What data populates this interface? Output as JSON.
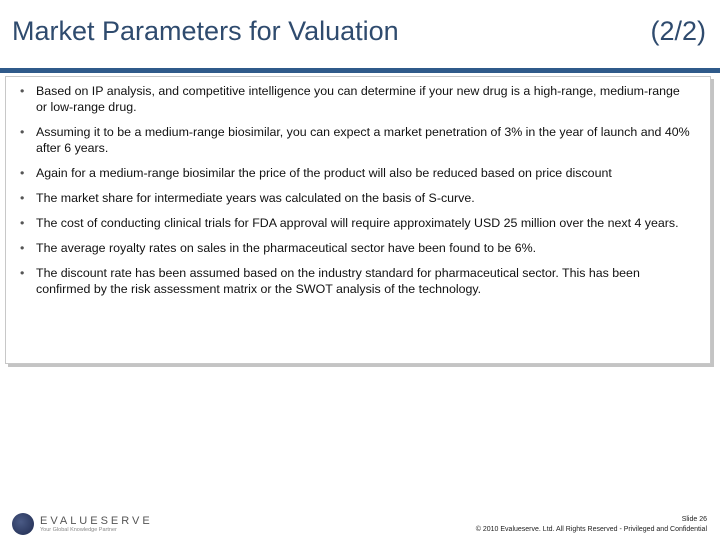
{
  "header": {
    "title": "Market Parameters for Valuation",
    "part": "(2/2)",
    "accent": "#2f5a8a"
  },
  "bullets": [
    "Based on IP analysis, and competitive intelligence you can determine if your new drug is a high-range, medium-range or low-range drug.",
    "Assuming it to be a medium-range biosimilar, you can expect a market penetration of 3% in the year of launch and 40% after 6 years.",
    "Again for a medium-range biosimilar the price of the product will also be reduced based on price discount",
    "The market share for intermediate years was calculated on the basis of S-curve.",
    "The cost of conducting clinical trials for FDA approval will require approximately USD  25 million over the next 4 years.",
    "The average royalty rates on sales in the pharmaceutical sector have been found to be 6%.",
    "The discount rate has been assumed based on the industry standard for pharmaceutical sector. This has been confirmed by the risk assessment matrix or the SWOT analysis of the technology."
  ],
  "footer": {
    "logo_name": "EVALUESERVE",
    "logo_tagline": "Your Global Knowledge Partner",
    "slide": "Slide 26",
    "copyright": "© 2010 Evalueserve. Ltd. All Rights Reserved - Privileged and Confidential"
  }
}
